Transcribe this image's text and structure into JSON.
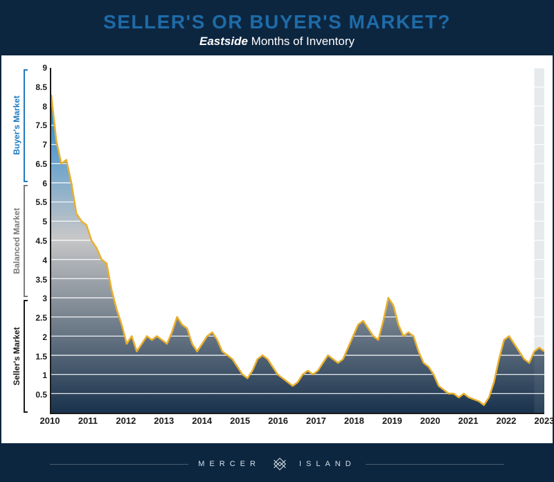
{
  "header": {
    "title": "SELLER'S OR BUYER'S MARKET?",
    "subtitle_em": "Eastside",
    "subtitle_rest": " Months of Inventory",
    "title_color": "#1e6ba8",
    "bg_color": "#0d2640"
  },
  "chart": {
    "type": "area",
    "ylim": [
      0,
      9
    ],
    "ytick_step": 0.5,
    "yticks": [
      0.5,
      1,
      1.5,
      2,
      2.5,
      3,
      3.5,
      4,
      4.5,
      5,
      5.5,
      6,
      6.5,
      7,
      7.5,
      8,
      8.5,
      9
    ],
    "xlabels": [
      "2010",
      "2011",
      "2012",
      "2013",
      "2014",
      "2015",
      "2016",
      "2017",
      "2018",
      "2019",
      "2020",
      "2021",
      "2022",
      "2023"
    ],
    "line_color": "#e8b02e",
    "line_width": 2.5,
    "grid_color": "#ffffff",
    "axis_color": "#1a1a1a",
    "gradient_top": "#1d85d1",
    "gradient_mid": "#c7c7c7",
    "gradient_bot": "#19324d",
    "zones": [
      {
        "label": "Buyer's Market",
        "from": 6,
        "to": 9,
        "color": "#1e7bbf"
      },
      {
        "label": "Balanced Market",
        "from": 3,
        "to": 6,
        "color": "#7a7a7a"
      },
      {
        "label": "Seller's Market",
        "from": 0,
        "to": 3,
        "color": "#1a1a1a"
      }
    ],
    "points": [
      8.3,
      7.1,
      6.5,
      6.6,
      6.0,
      5.2,
      5.0,
      4.9,
      4.5,
      4.3,
      4.0,
      3.9,
      3.2,
      2.7,
      2.3,
      1.8,
      2.0,
      1.6,
      1.8,
      2.0,
      1.9,
      2.0,
      1.9,
      1.8,
      2.1,
      2.5,
      2.3,
      2.2,
      1.8,
      1.6,
      1.8,
      2.0,
      2.1,
      1.9,
      1.6,
      1.5,
      1.4,
      1.2,
      1.0,
      0.9,
      1.1,
      1.4,
      1.5,
      1.4,
      1.2,
      1.0,
      0.9,
      0.8,
      0.7,
      0.8,
      1.0,
      1.1,
      1.0,
      1.1,
      1.3,
      1.5,
      1.4,
      1.3,
      1.4,
      1.7,
      2.0,
      2.3,
      2.4,
      2.2,
      2.0,
      1.9,
      2.4,
      3.0,
      2.8,
      2.3,
      2.0,
      2.1,
      2.0,
      1.6,
      1.3,
      1.2,
      1.0,
      0.7,
      0.6,
      0.5,
      0.5,
      0.4,
      0.5,
      0.4,
      0.35,
      0.3,
      0.2,
      0.4,
      0.8,
      1.4,
      1.9,
      2.0,
      1.8,
      1.6,
      1.4,
      1.3,
      1.6,
      1.7,
      1.6
    ]
  },
  "footer": {
    "left": "MERCER",
    "right": "ISLAND",
    "bg_color": "#0d2640",
    "text_color": "#d5e0ea"
  }
}
